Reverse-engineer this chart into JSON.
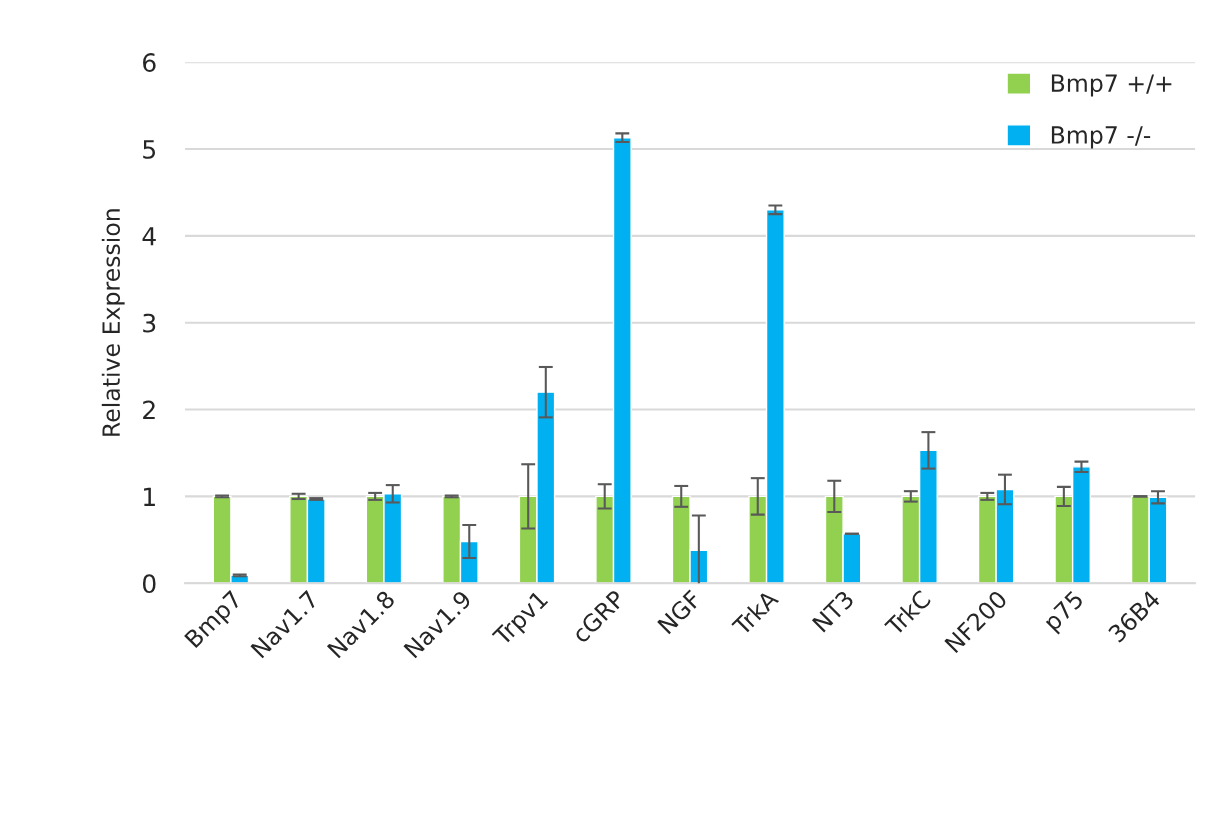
{
  "chart_data": {
    "type": "bar",
    "ylabel": "Relative Expression",
    "categories": [
      "Bmp7",
      "Nav1.7",
      "Nav1.8",
      "Nav1.9",
      "Trpv1",
      "cGRP",
      "NGF",
      "TrkA",
      "NT3",
      "TrkC",
      "NF200",
      "p75",
      "36B4"
    ],
    "series": [
      {
        "name": "Bmp7 +/+",
        "color": "#92d050",
        "values": [
          1,
          1,
          1,
          1,
          1,
          1,
          1,
          1,
          1,
          1,
          1,
          1,
          1
        ],
        "errors": [
          0.01,
          0.03,
          0.04,
          0.01,
          0.37,
          0.14,
          0.12,
          0.21,
          0.18,
          0.06,
          0.04,
          0.11,
          0
        ]
      },
      {
        "name": "Bmp7 -/-",
        "color": "#00b0f0",
        "values": [
          0.09,
          0.97,
          1.03,
          0.48,
          2.2,
          5.13,
          0.38,
          4.3,
          0.57,
          1.53,
          1.08,
          1.34,
          0.99
        ],
        "errors": [
          0.01,
          0.01,
          0.1,
          0.19,
          0.29,
          0.05,
          0.4,
          0.05,
          0,
          0.21,
          0.17,
          0.06,
          0.07
        ]
      }
    ],
    "ylim": [
      0,
      6
    ],
    "yticks": [
      0,
      1,
      2,
      3,
      4,
      5,
      6
    ],
    "grid": "y",
    "legend": "top right"
  }
}
